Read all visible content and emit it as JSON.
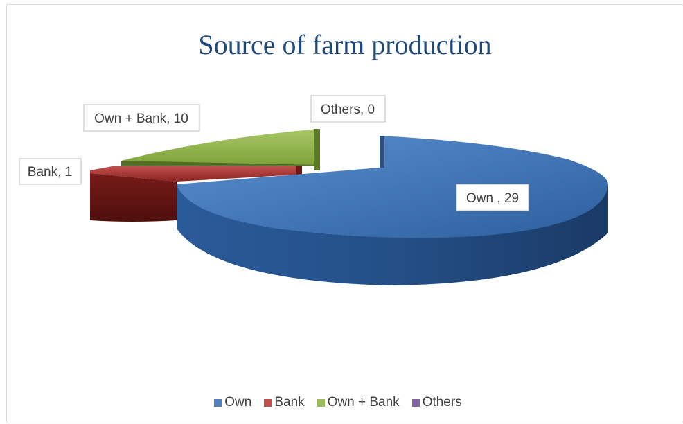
{
  "chart_data": {
    "type": "pie",
    "title": "Source of farm production",
    "categories": [
      "Own",
      "Bank",
      "Own + Bank",
      "Others"
    ],
    "values": [
      29,
      1,
      10,
      0
    ],
    "data_labels": [
      "Own , 29",
      "Bank, 1",
      "Own + Bank, 10",
      "Others, 0"
    ],
    "colors": [
      "#4f81bd",
      "#c0504d",
      "#9bbb59",
      "#8064a2"
    ],
    "legend_position": "bottom",
    "style": "3d-exploded"
  }
}
